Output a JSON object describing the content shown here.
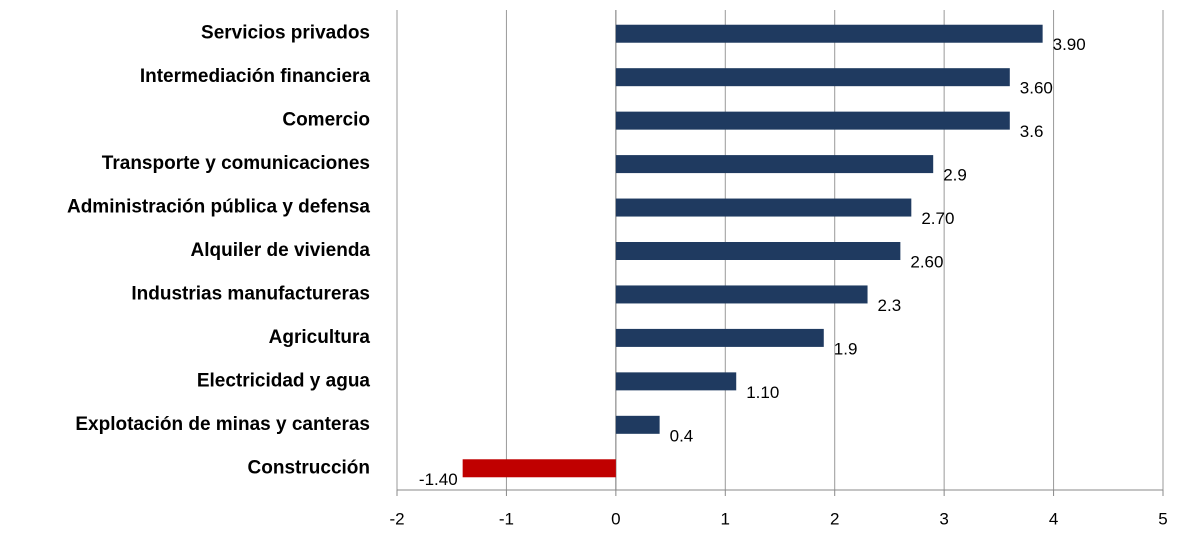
{
  "chart_data": {
    "type": "hbar",
    "categories": [
      "Servicios privados",
      "Intermediación financiera",
      "Comercio",
      "Transporte y comunicaciones",
      "Administración pública y defensa",
      "Alquiler de vivienda",
      "Industrias manufactureras",
      "Agricultura",
      "Electricidad y agua",
      "Explotación de minas y canteras",
      "Construcción"
    ],
    "values": [
      3.9,
      3.6,
      3.6,
      2.9,
      2.7,
      2.6,
      2.3,
      1.9,
      1.1,
      0.4,
      -1.4
    ],
    "value_labels": [
      "3.90",
      "3.60",
      "3.6",
      "2.9",
      "2.70",
      "2.60",
      "2.3",
      "1.9",
      "1.10",
      "0.4",
      "-1.40"
    ],
    "colors": [
      "#1f3a60",
      "#1f3a60",
      "#1f3a60",
      "#1f3a60",
      "#1f3a60",
      "#1f3a60",
      "#1f3a60",
      "#1f3a60",
      "#1f3a60",
      "#1f3a60",
      "#c00000"
    ],
    "xlim": [
      -2,
      5
    ],
    "xticks": [
      -2,
      -1,
      0,
      1,
      2,
      3,
      4,
      5
    ],
    "grid": true
  }
}
